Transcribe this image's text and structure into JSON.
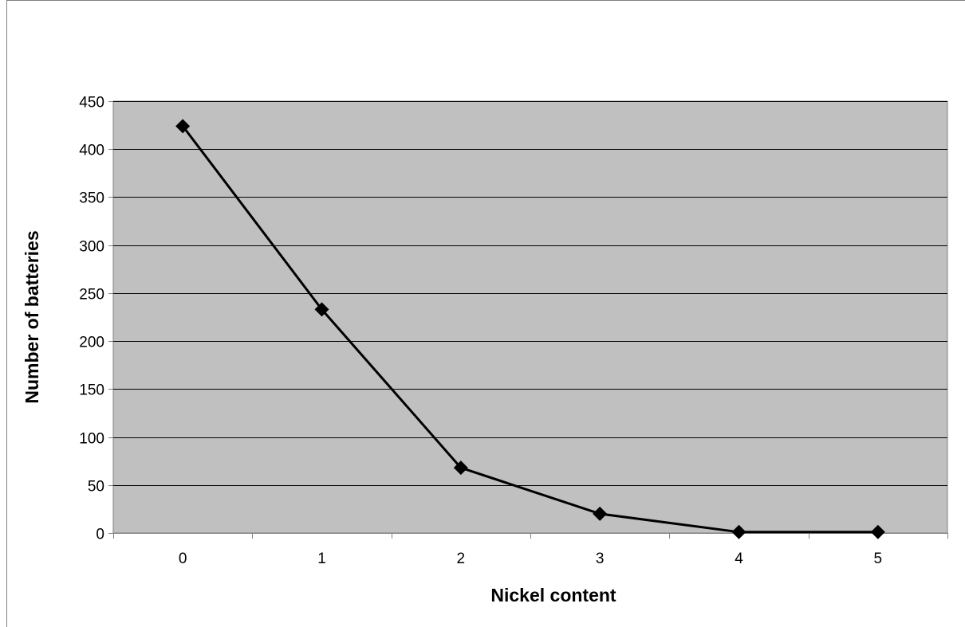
{
  "chart_data": {
    "type": "line",
    "title": "",
    "xlabel": "Nickel content",
    "ylabel": "Number of batteries",
    "x": [
      0,
      1,
      2,
      3,
      4,
      5
    ],
    "x_tick_labels": [
      "0",
      "1",
      "2",
      "3",
      "4",
      "5"
    ],
    "y_tick_labels": [
      "0",
      "50",
      "100",
      "150",
      "200",
      "250",
      "300",
      "350",
      "400",
      "450"
    ],
    "series": [
      {
        "values": [
          424,
          233,
          68,
          20,
          1,
          1
        ]
      }
    ],
    "ylim": [
      0,
      450
    ],
    "y_major_step": 50,
    "grid": "horizontal",
    "legend": "none",
    "marker": "diamond",
    "colors": {
      "plot_background": "#c0c0c0",
      "line": "#000000",
      "marker": "#000000",
      "gridline": "#000000",
      "axis": "#808080"
    }
  }
}
